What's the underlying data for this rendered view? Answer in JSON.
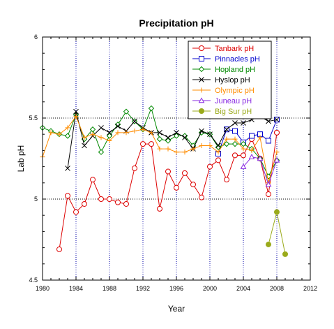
{
  "chart_data": {
    "type": "line",
    "title": "Precipitation pH",
    "xlabel": "Year",
    "ylabel": "Lab pH",
    "xlim": [
      1980,
      2012
    ],
    "ylim": [
      4.5,
      6
    ],
    "xticks": [
      "1980",
      "1984",
      "1988",
      "1992",
      "1996",
      "2000",
      "2004",
      "2008",
      "2012"
    ],
    "yticks": [
      "4.5",
      "5",
      "5.5",
      "6"
    ],
    "grid": "dotted at major ticks",
    "legend_position": "top-right",
    "series": [
      {
        "name": "Tanbark pH",
        "color": "#dd0000",
        "marker": "circle-open",
        "x": [
          1982,
          1983,
          1984,
          1985,
          1986,
          1987,
          1988,
          1989,
          1990,
          1991,
          1992,
          1993,
          1994,
          1995,
          1996,
          1997,
          1998,
          1999,
          2000,
          2001,
          2002,
          2003,
          2004,
          2005,
          2006,
          2007,
          2008
        ],
        "y": [
          4.69,
          5.02,
          4.92,
          4.97,
          5.12,
          5.0,
          5.0,
          4.98,
          4.97,
          5.19,
          5.34,
          5.34,
          4.94,
          5.17,
          5.07,
          5.16,
          5.09,
          5.01,
          5.2,
          5.24,
          5.12,
          5.27,
          5.27,
          5.37,
          5.25,
          5.03,
          5.41
        ]
      },
      {
        "name": "Pinnacles pH",
        "color": "#0000cc",
        "marker": "square-open",
        "x": [
          2001,
          2002,
          2003,
          2004,
          2005,
          2006,
          2007,
          2008
        ],
        "y": [
          5.28,
          5.43,
          5.42,
          5.35,
          5.39,
          5.4,
          5.36,
          5.49
        ]
      },
      {
        "name": "Hopland pH",
        "color": "#008800",
        "marker": "diamond-open",
        "x": [
          1980,
          1981,
          1982,
          1983,
          1984,
          1985,
          1986,
          1987,
          1988,
          1989,
          1990,
          1991,
          1992,
          1993,
          1994,
          1995,
          1996,
          1997,
          1998,
          1999,
          2000,
          2001,
          2002,
          2003,
          2004,
          2005,
          2006,
          2007,
          2008
        ],
        "y": [
          5.44,
          5.42,
          5.4,
          5.39,
          5.52,
          5.37,
          5.43,
          5.29,
          5.39,
          5.46,
          5.54,
          5.48,
          5.43,
          5.56,
          5.37,
          5.36,
          5.39,
          5.39,
          5.33,
          5.41,
          5.4,
          5.32,
          5.34,
          5.34,
          5.34,
          5.31,
          5.25,
          5.14,
          5.24
        ]
      },
      {
        "name": "Hyslop pH",
        "color": "#000000",
        "marker": "x",
        "x": [
          1983,
          1984,
          1985,
          1986,
          1987,
          1988,
          1989,
          1990,
          1991,
          1992,
          1993,
          1994,
          1995,
          1996,
          1997,
          1998,
          1999,
          2000,
          2001,
          2002,
          2003,
          2004,
          2005,
          2006,
          2007,
          2008
        ],
        "y": [
          5.19,
          5.54,
          5.33,
          5.39,
          5.44,
          5.41,
          5.45,
          5.42,
          5.48,
          5.44,
          5.41,
          5.41,
          5.38,
          5.41,
          5.38,
          5.31,
          5.42,
          5.4,
          5.33,
          5.43,
          5.47,
          5.47,
          5.49,
          5.51,
          5.48,
          5.49
        ]
      },
      {
        "name": "Olympic pH",
        "color": "#ff8c00",
        "marker": "plus",
        "x": [
          1980,
          1981,
          1982,
          1983,
          1984,
          1985,
          1986,
          1987,
          1988,
          1989,
          1990,
          1991,
          1992,
          1993,
          1994,
          1995,
          1996,
          1997,
          1998,
          1999,
          2000,
          2001,
          2002,
          2003,
          2004,
          2005,
          2006,
          2007,
          2008
        ],
        "y": [
          5.26,
          5.41,
          5.4,
          5.44,
          5.51,
          5.38,
          5.4,
          5.38,
          5.36,
          5.41,
          5.41,
          5.42,
          5.43,
          5.41,
          5.31,
          5.31,
          5.29,
          5.29,
          5.31,
          5.33,
          5.33,
          5.29,
          5.37,
          5.37,
          5.31,
          5.3,
          5.38,
          5.1,
          5.29
        ]
      },
      {
        "name": "Juneau pH",
        "color": "#8a2be2",
        "marker": "triangle-open",
        "x": [
          2004,
          2005,
          2006,
          2007,
          2008
        ],
        "y": [
          5.2,
          5.26,
          5.25,
          5.09,
          5.24
        ]
      },
      {
        "name": "Big Sur pH",
        "color": "#9aaa1a",
        "marker": "circle-filled",
        "x": [
          2007,
          2008,
          2009
        ],
        "y": [
          4.72,
          4.92,
          4.66
        ]
      }
    ]
  }
}
